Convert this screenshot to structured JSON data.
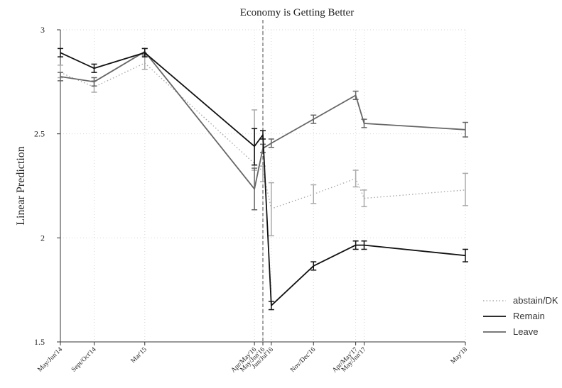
{
  "chart_data": {
    "type": "line",
    "title": "Economy is Getting Better",
    "xlabel": "",
    "ylabel": "Linear Prediction",
    "ylim": [
      1.5,
      3.0
    ],
    "yticks": [
      "1.5",
      "2",
      "2.5",
      "3"
    ],
    "grid": true,
    "legend_position": "right",
    "reference_line": {
      "at": "May/Jun'16",
      "style": "dashed"
    },
    "x": [
      {
        "label": "May/Jun'14",
        "t": 0
      },
      {
        "label": "Sept/Oct'14",
        "t": 4
      },
      {
        "label": "Mar'15",
        "t": 10
      },
      {
        "label": "Apr/May'16",
        "t": 23
      },
      {
        "label": "May/Jun'16",
        "t": 24
      },
      {
        "label": "Jun/Jul'16",
        "t": 25
      },
      {
        "label": "Nov/Dec'16",
        "t": 30
      },
      {
        "label": "Apr/May'17",
        "t": 35
      },
      {
        "label": "May/Jun'17",
        "t": 36
      },
      {
        "label": "May'18",
        "t": 48
      }
    ],
    "series": [
      {
        "name": "abstain/DK",
        "color": "#aaaaaa",
        "style": "dotted",
        "values": [
          2.795,
          2.725,
          2.84,
          null,
          2.32,
          2.14,
          2.21,
          2.285,
          2.19,
          2.23
        ],
        "ci_low": [
          2.77,
          2.7,
          2.81,
          null,
          2.27,
          2.01,
          2.165,
          2.245,
          2.15,
          2.155
        ],
        "ci_high": [
          2.83,
          2.755,
          2.875,
          null,
          2.345,
          2.265,
          2.255,
          2.325,
          2.23,
          2.31
        ],
        "extra_errorbars": [
          {
            "x_index": 3,
            "low": 2.325,
            "high": 2.615
          }
        ]
      },
      {
        "name": "Remain",
        "color": "#111111",
        "style": "solid",
        "values": [
          2.89,
          2.815,
          2.89,
          2.44,
          2.495,
          1.675,
          1.865,
          1.965,
          1.965,
          1.915
        ],
        "ci_low": [
          2.87,
          2.795,
          2.87,
          2.35,
          2.475,
          1.655,
          1.845,
          1.945,
          1.945,
          1.885
        ],
        "ci_high": [
          2.91,
          2.835,
          2.91,
          2.525,
          2.515,
          1.695,
          1.885,
          1.985,
          1.985,
          1.945
        ]
      },
      {
        "name": "Leave",
        "color": "#666666",
        "style": "solid",
        "values": [
          2.775,
          2.75,
          2.895,
          2.235,
          2.43,
          2.455,
          2.57,
          2.685,
          2.55,
          2.52
        ],
        "ci_low": [
          2.755,
          2.73,
          2.88,
          2.135,
          2.41,
          2.435,
          2.55,
          2.665,
          2.53,
          2.485
        ],
        "ci_high": [
          2.795,
          2.77,
          2.91,
          2.335,
          2.45,
          2.475,
          2.59,
          2.705,
          2.57,
          2.555
        ]
      }
    ]
  }
}
